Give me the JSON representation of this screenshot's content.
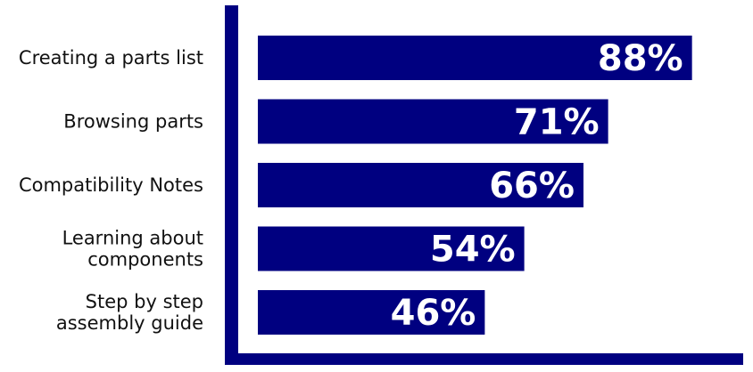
{
  "chart_data": {
    "type": "bar",
    "orientation": "horizontal",
    "categories": [
      [
        "Creating a parts list"
      ],
      [
        "Browsing parts"
      ],
      [
        "Compatibility Notes"
      ],
      [
        "Learning about",
        "components"
      ],
      [
        "Step by step",
        "assembly guide"
      ]
    ],
    "values": [
      88,
      71,
      66,
      54,
      46
    ],
    "value_labels": [
      "88%",
      "71%",
      "66%",
      "54%",
      "46%"
    ],
    "xlim": [
      0,
      100
    ],
    "bar_color": "#000080",
    "axis_color": "#000080",
    "value_label_color": "#ffffff",
    "grid": false,
    "legend": false
  }
}
